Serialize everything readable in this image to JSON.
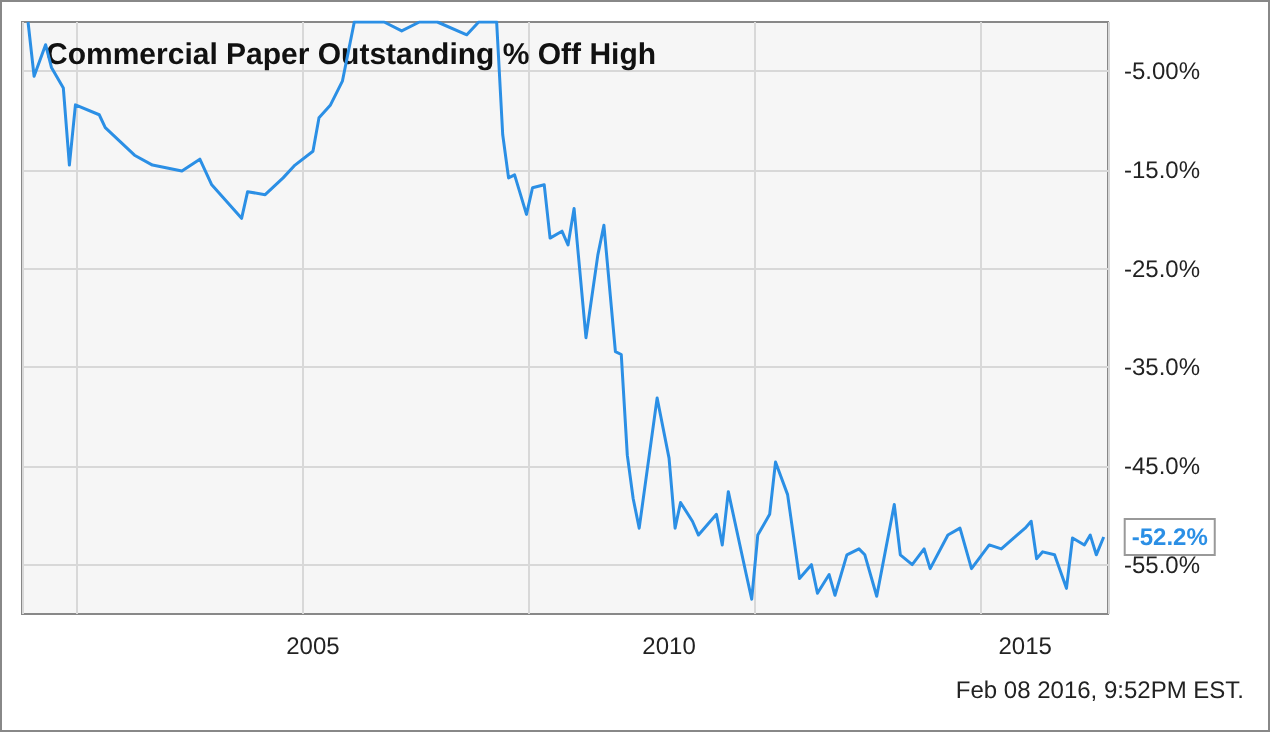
{
  "chart_data": {
    "type": "line",
    "title": "Commercial Paper Outstanding % Off High",
    "x": [
      "2001-01",
      "2001-02",
      "2001-04",
      "2001-05",
      "2001-07",
      "2001-08",
      "2001-09",
      "2002-01",
      "2002-02",
      "2002-07",
      "2002-10",
      "2003-03",
      "2003-06",
      "2003-08",
      "2004-01",
      "2004-02",
      "2004-05",
      "2004-08",
      "2004-10",
      "2005-01",
      "2005-02",
      "2005-04",
      "2005-06",
      "2005-08",
      "2005-10",
      "2006-01",
      "2006-04",
      "2006-07",
      "2006-10",
      "2007-03",
      "2007-05",
      "2007-08",
      "2007-09",
      "2007-10",
      "2007-11",
      "2008-01",
      "2008-02",
      "2008-04",
      "2008-05",
      "2008-07",
      "2008-08",
      "2008-09",
      "2008-11",
      "2009-01",
      "2009-02",
      "2009-04",
      "2009-05",
      "2009-06",
      "2009-07",
      "2009-08",
      "2009-11",
      "2010-01",
      "2010-02",
      "2010-03",
      "2010-05",
      "2010-06",
      "2010-09",
      "2010-10",
      "2010-11",
      "2011-02",
      "2011-03",
      "2011-04",
      "2011-06",
      "2011-07",
      "2011-09",
      "2011-11",
      "2012-01",
      "2012-02",
      "2012-04",
      "2012-05",
      "2012-07",
      "2012-09",
      "2012-10",
      "2012-12",
      "2013-03",
      "2013-04",
      "2013-06",
      "2013-08",
      "2013-09",
      "2013-12",
      "2014-02",
      "2014-04",
      "2014-07",
      "2014-09",
      "2015-01",
      "2015-02",
      "2015-03",
      "2015-04",
      "2015-06",
      "2015-08",
      "2015-09",
      "2015-11",
      "2015-12",
      "2016-01",
      "2016-02-08"
    ],
    "series": [
      {
        "color": "#2b8fe5",
        "values": [
          0,
          -5.5,
          -2.3,
          -4.6,
          -6.7,
          -14.5,
          -8.4,
          -9.4,
          -10.7,
          -13.5,
          -14.5,
          -15.1,
          -13.9,
          -16.5,
          -19.9,
          -17.2,
          -17.5,
          -15.8,
          -14.5,
          -13.1,
          -9.7,
          -8.4,
          -6.0,
          0,
          0,
          0,
          -0.9,
          0,
          0,
          -1.3,
          0,
          0,
          -11.4,
          -15.8,
          -15.5,
          -19.5,
          -16.8,
          -16.5,
          -21.9,
          -21.2,
          -22.6,
          -18.9,
          -32.0,
          -23.6,
          -20.6,
          -33.4,
          -33.7,
          -43.9,
          -48.3,
          -51.3,
          -38.1,
          -44.2,
          -51.3,
          -48.7,
          -50.6,
          -52.0,
          -49.9,
          -53.0,
          -47.6,
          -56.0,
          -58.5,
          -52.0,
          -49.9,
          -44.6,
          -47.9,
          -56.4,
          -55.0,
          -57.9,
          -56.0,
          -58.1,
          -54.0,
          -53.4,
          -54.0,
          -58.2,
          -48.9,
          -54.0,
          -55.0,
          -53.4,
          -55.4,
          -52.0,
          -51.3,
          -55.4,
          -53.0,
          -53.4,
          -51.3,
          -50.6,
          -54.4,
          -53.7,
          -54.0,
          -57.4,
          -52.3,
          -53.0,
          -52.0,
          -54.0,
          -52.2
        ]
      }
    ],
    "xlim": [
      "2000-12",
      "2016-03"
    ],
    "xticks": [
      "2005",
      "2010",
      "2015"
    ],
    "ylim": [
      -60,
      0
    ],
    "yticks": [
      {
        "value": -5,
        "label": "-5.00%"
      },
      {
        "value": -15,
        "label": "-15.0%"
      },
      {
        "value": -25,
        "label": "-25.0%"
      },
      {
        "value": -35,
        "label": "-35.0%"
      },
      {
        "value": -45,
        "label": "-45.0%"
      },
      {
        "value": -55,
        "label": "-55.0%"
      }
    ],
    "grid": true,
    "marker": "none",
    "line_style": "solid",
    "annotations": [
      {
        "text": "-52.2%",
        "x": "2016-02-08",
        "y": -52.2
      },
      "Feb 08 2016, 9:52PM EST."
    ]
  }
}
